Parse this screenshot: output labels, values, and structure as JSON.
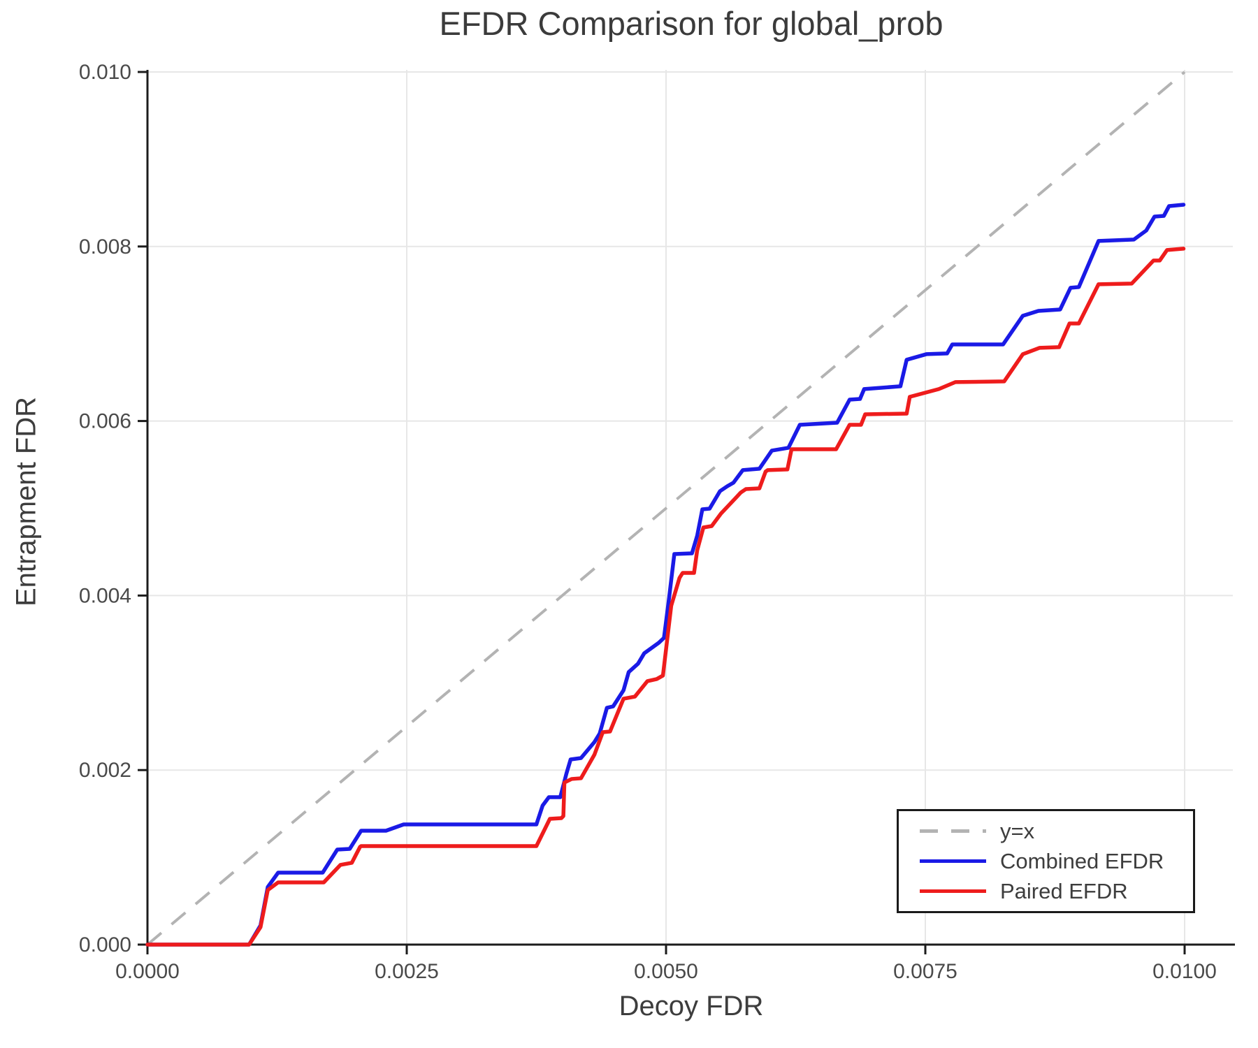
{
  "chart_data": {
    "type": "line",
    "title": "EFDR Comparison for global_prob",
    "xlabel": "Decoy FDR",
    "ylabel": "Entrapment FDR",
    "xlim": [
      0,
      0.01048
    ],
    "ylim": [
      0,
      0.01003
    ],
    "grid": true,
    "legend_position": "lower right",
    "x_tick_values": [
      0.0,
      0.0025,
      0.005,
      0.0075,
      0.01
    ],
    "x_tick_labels": [
      "0.0000",
      "0.0025",
      "0.0050",
      "0.0075",
      "0.0100"
    ],
    "y_tick_values": [
      0.0,
      0.002,
      0.004,
      0.006,
      0.008,
      0.01
    ],
    "y_tick_labels": [
      "0.000",
      "0.002",
      "0.004",
      "0.006",
      "0.008",
      "0.010"
    ],
    "reference_line": {
      "name": "y=x",
      "style": "dashed",
      "color": "#b3b3b3",
      "points": [
        [
          0,
          0
        ],
        [
          0.01,
          0.01
        ]
      ]
    },
    "series": [
      {
        "name": "Combined EFDR",
        "color": "#1a1ae6",
        "points": [
          [
            0,
            0
          ],
          [
            0.00098,
            0
          ],
          [
            0.00109,
            0.00022
          ],
          [
            0.00116,
            0.00066
          ],
          [
            0.00126,
            0.000825
          ],
          [
            0.00169,
            0.000825
          ],
          [
            0.00183,
            0.001089
          ],
          [
            0.00195,
            0.001097
          ],
          [
            0.00206,
            0.001305
          ],
          [
            0.0023,
            0.001305
          ],
          [
            0.00247,
            0.001377
          ],
          [
            0.00375,
            0.001377
          ],
          [
            0.00381,
            0.001593
          ],
          [
            0.00387,
            0.001689
          ],
          [
            0.00398,
            0.001689
          ],
          [
            0.00404,
            0.001962
          ],
          [
            0.00408,
            0.002122
          ],
          [
            0.00418,
            0.002138
          ],
          [
            0.00431,
            0.002322
          ],
          [
            0.00436,
            0.002418
          ],
          [
            0.00443,
            0.002714
          ],
          [
            0.00449,
            0.00273
          ],
          [
            0.00459,
            0.002914
          ],
          [
            0.00464,
            0.003123
          ],
          [
            0.00473,
            0.003219
          ],
          [
            0.00479,
            0.003339
          ],
          [
            0.00493,
            0.003459
          ],
          [
            0.00498,
            0.003515
          ],
          [
            0.00503,
            0.003979
          ],
          [
            0.00508,
            0.004476
          ],
          [
            0.00525,
            0.004484
          ],
          [
            0.0053,
            0.004684
          ],
          [
            0.00535,
            0.004988
          ],
          [
            0.00542,
            0.004996
          ],
          [
            0.00552,
            0.005196
          ],
          [
            0.00559,
            0.005252
          ],
          [
            0.00565,
            0.005293
          ],
          [
            0.00574,
            0.005437
          ],
          [
            0.0059,
            0.005453
          ],
          [
            0.00602,
            0.005661
          ],
          [
            0.00618,
            0.005693
          ],
          [
            0.00629,
            0.005957
          ],
          [
            0.00665,
            0.005981
          ],
          [
            0.00677,
            0.006245
          ],
          [
            0.00687,
            0.006253
          ],
          [
            0.00691,
            0.006366
          ],
          [
            0.00726,
            0.006398
          ],
          [
            0.00732,
            0.006702
          ],
          [
            0.00751,
            0.006766
          ],
          [
            0.00771,
            0.006774
          ],
          [
            0.00776,
            0.006878
          ],
          [
            0.00825,
            0.006878
          ],
          [
            0.00844,
            0.007206
          ],
          [
            0.00859,
            0.007262
          ],
          [
            0.0088,
            0.007278
          ],
          [
            0.0089,
            0.007527
          ],
          [
            0.00898,
            0.007535
          ],
          [
            0.00917,
            0.008063
          ],
          [
            0.00951,
            0.008079
          ],
          [
            0.00963,
            0.008183
          ],
          [
            0.00971,
            0.008343
          ],
          [
            0.0098,
            0.008351
          ],
          [
            0.00985,
            0.008463
          ],
          [
            0.00999,
            0.008479
          ]
        ]
      },
      {
        "name": "Paired EFDR",
        "color": "#ee1c1c",
        "points": [
          [
            0,
            0
          ],
          [
            0.00098,
            0
          ],
          [
            0.00109,
            0.0002
          ],
          [
            0.00116,
            0.000625
          ],
          [
            0.00126,
            0.000713
          ],
          [
            0.0017,
            0.000713
          ],
          [
            0.00186,
            0.000913
          ],
          [
            0.00197,
            0.000937
          ],
          [
            0.00205,
            0.001121
          ],
          [
            0.00206,
            0.001129
          ],
          [
            0.00375,
            0.001129
          ],
          [
            0.00388,
            0.001441
          ],
          [
            0.00399,
            0.001449
          ],
          [
            0.00401,
            0.001473
          ],
          [
            0.00402,
            0.001857
          ],
          [
            0.00409,
            0.001898
          ],
          [
            0.00418,
            0.001906
          ],
          [
            0.00431,
            0.002178
          ],
          [
            0.00439,
            0.002434
          ],
          [
            0.00446,
            0.002442
          ],
          [
            0.00459,
            0.002818
          ],
          [
            0.0047,
            0.002842
          ],
          [
            0.00482,
            0.003019
          ],
          [
            0.00491,
            0.003043
          ],
          [
            0.00497,
            0.003083
          ],
          [
            0.00505,
            0.003883
          ],
          [
            0.00513,
            0.004203
          ],
          [
            0.00516,
            0.004259
          ],
          [
            0.00527,
            0.004259
          ],
          [
            0.0053,
            0.004516
          ],
          [
            0.00536,
            0.00478
          ],
          [
            0.00544,
            0.004796
          ],
          [
            0.00553,
            0.00494
          ],
          [
            0.00567,
            0.005116
          ],
          [
            0.00572,
            0.00518
          ],
          [
            0.00577,
            0.00522
          ],
          [
            0.0059,
            0.005228
          ],
          [
            0.00596,
            0.005421
          ],
          [
            0.00598,
            0.005437
          ],
          [
            0.00617,
            0.005445
          ],
          [
            0.00621,
            0.005677
          ],
          [
            0.00664,
            0.005677
          ],
          [
            0.00677,
            0.005957
          ],
          [
            0.00688,
            0.005957
          ],
          [
            0.00692,
            0.006077
          ],
          [
            0.00732,
            0.006085
          ],
          [
            0.00735,
            0.006277
          ],
          [
            0.00763,
            0.006366
          ],
          [
            0.00779,
            0.006446
          ],
          [
            0.00826,
            0.006454
          ],
          [
            0.00844,
            0.006766
          ],
          [
            0.0086,
            0.006838
          ],
          [
            0.00879,
            0.006846
          ],
          [
            0.00889,
            0.007118
          ],
          [
            0.00898,
            0.007118
          ],
          [
            0.00917,
            0.007567
          ],
          [
            0.00949,
            0.007575
          ],
          [
            0.0097,
            0.007839
          ],
          [
            0.00976,
            0.007839
          ],
          [
            0.00983,
            0.007959
          ],
          [
            0.00999,
            0.007975
          ]
        ]
      }
    ],
    "style": {
      "grid_color": "#e7e7e7",
      "spine_color": "#1c1c1c",
      "tick_color": "#1c1c1c",
      "tick_label_color": "#4a4a4a",
      "text_color": "#3d3d3d",
      "background": "#ffffff"
    }
  }
}
